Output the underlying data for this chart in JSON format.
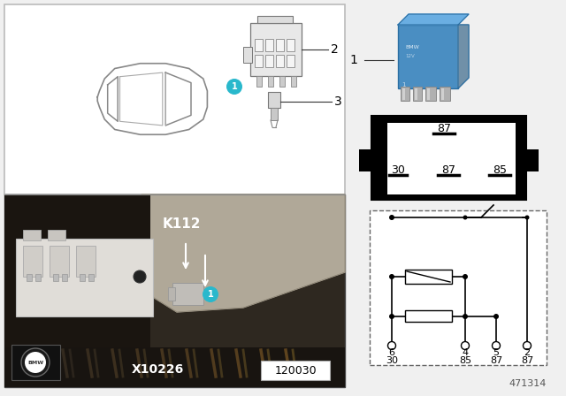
{
  "bg_color": "#f0f0f0",
  "white": "#ffffff",
  "black": "#000000",
  "cyan": "#29b8cc",
  "light_gray": "#d0d0d0",
  "dark_gray": "#555555",
  "photo_bg": "#3a3530",
  "photo_wall": "#8a8070",
  "fuse_box_color": "#c8c0b0",
  "relay_blue": "#5090c8",
  "relay_blue_dark": "#3070a8",
  "relay_blue_top": "#70b0e0",
  "pin_metal": "#a0a0a0",
  "code_471314": "471314",
  "code_120030": "120030",
  "label_k112": "K112",
  "label_x10226": "X10226",
  "car_box_bg": "#ffffff",
  "car_line_color": "#888888",
  "connector_line": "#666666"
}
